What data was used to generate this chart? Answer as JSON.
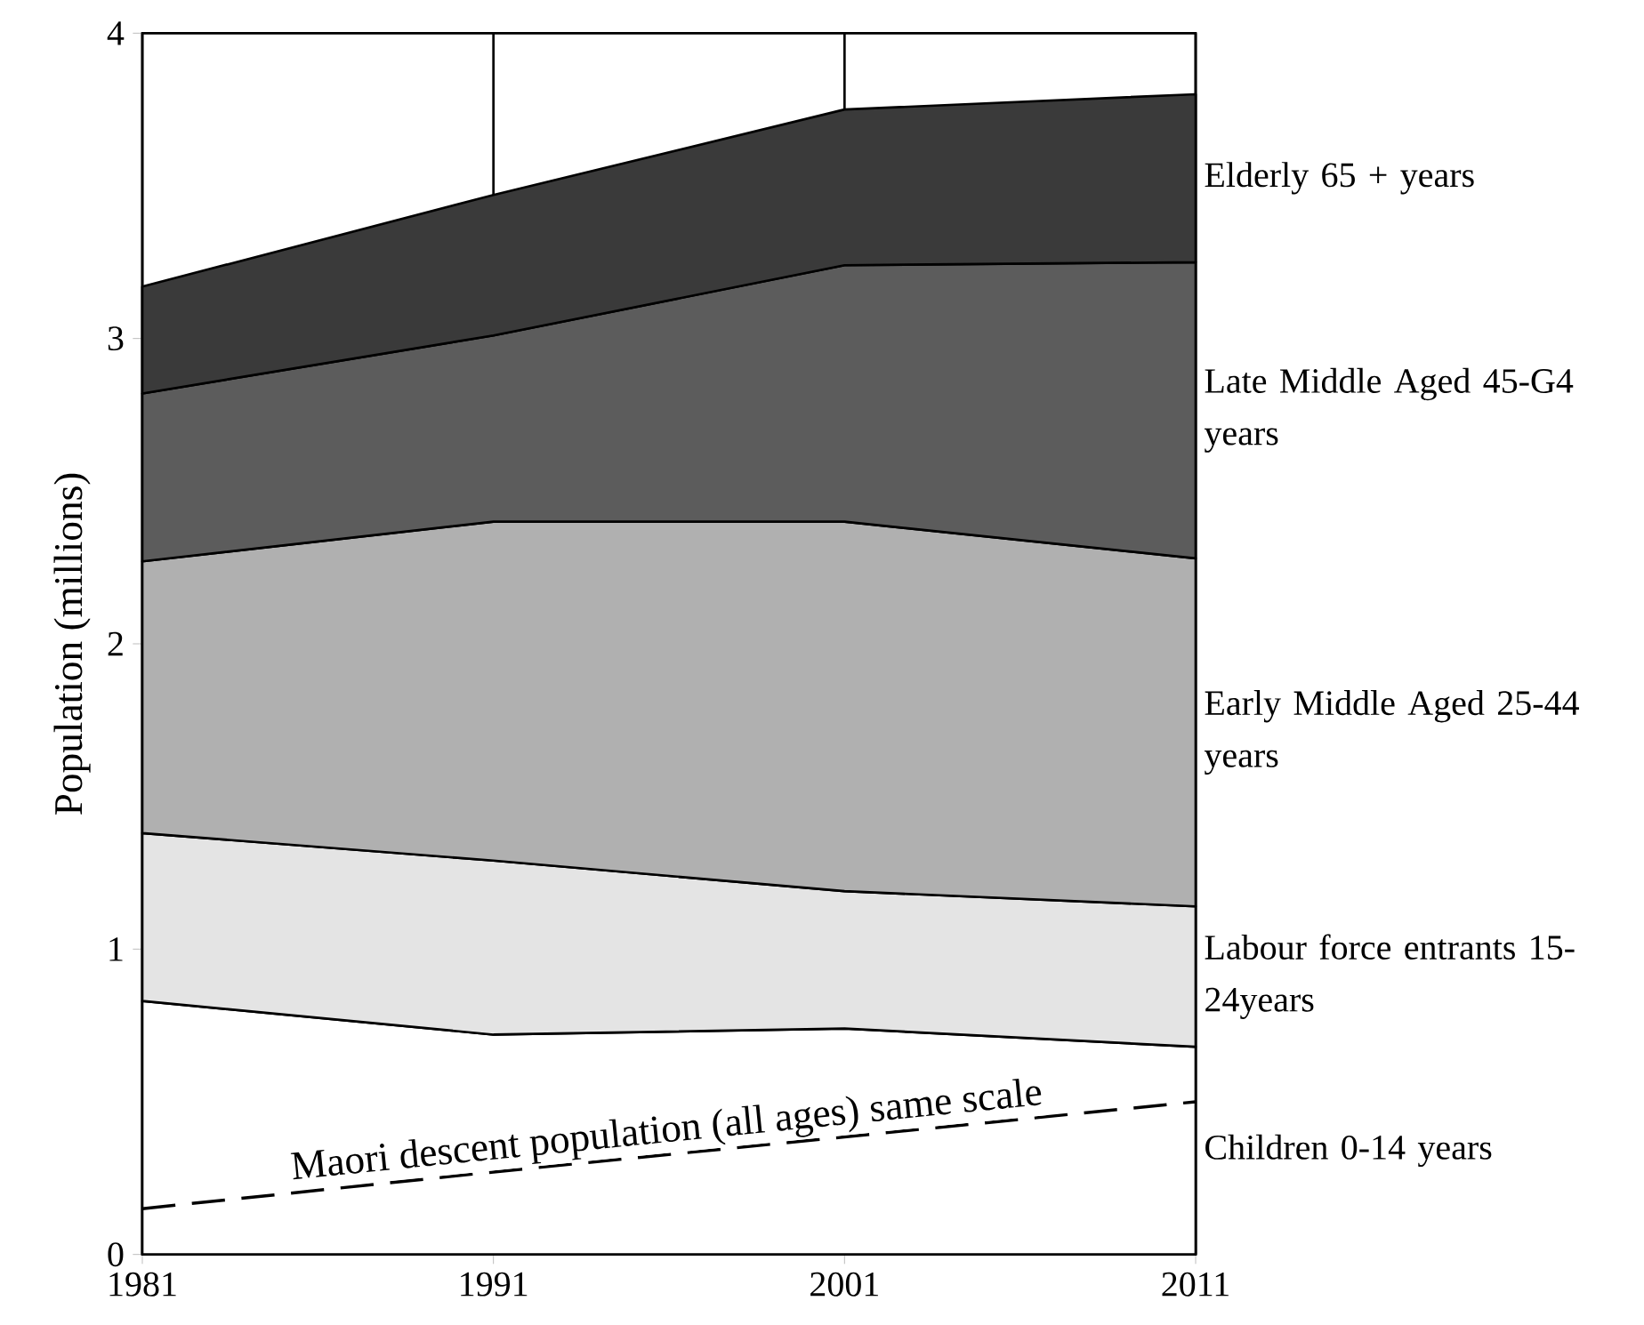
{
  "chart_data": {
    "type": "area",
    "stacked": true,
    "ylabel": "Population (millions)",
    "x": [
      1981,
      1991,
      2001,
      2011
    ],
    "xlim": [
      1981,
      2011
    ],
    "xticks": [
      1981,
      1991,
      2001,
      2011
    ],
    "ylim": [
      0,
      4
    ],
    "yticks": [
      0,
      1,
      2,
      3,
      4
    ],
    "grid": "x",
    "series": [
      {
        "name": "Children 0-14 years",
        "color": "#ffffff",
        "values": [
          0.83,
          0.72,
          0.74,
          0.68
        ]
      },
      {
        "name": "Labour force entrants 15-24years",
        "color": "#e4e4e4",
        "values": [
          0.55,
          0.57,
          0.45,
          0.46
        ]
      },
      {
        "name": "Early Middle Aged 25-44 years",
        "color": "#b0b0b0",
        "values": [
          0.89,
          1.11,
          1.21,
          1.14
        ]
      },
      {
        "name": "Late Middle Aged 45-G4 years",
        "color": "#5c5c5c",
        "values": [
          0.55,
          0.61,
          0.84,
          0.97
        ]
      },
      {
        "name": "Elderly 65 + years",
        "color": "#3a3a3a",
        "values": [
          0.35,
          0.46,
          0.51,
          0.55
        ]
      },
      {
        "name": "Maori descent population (all ages) same scale",
        "type": "line",
        "line_style": "dashed",
        "color": "#000000",
        "values": [
          0.15,
          0.27,
          0.385,
          0.5
        ]
      }
    ]
  }
}
